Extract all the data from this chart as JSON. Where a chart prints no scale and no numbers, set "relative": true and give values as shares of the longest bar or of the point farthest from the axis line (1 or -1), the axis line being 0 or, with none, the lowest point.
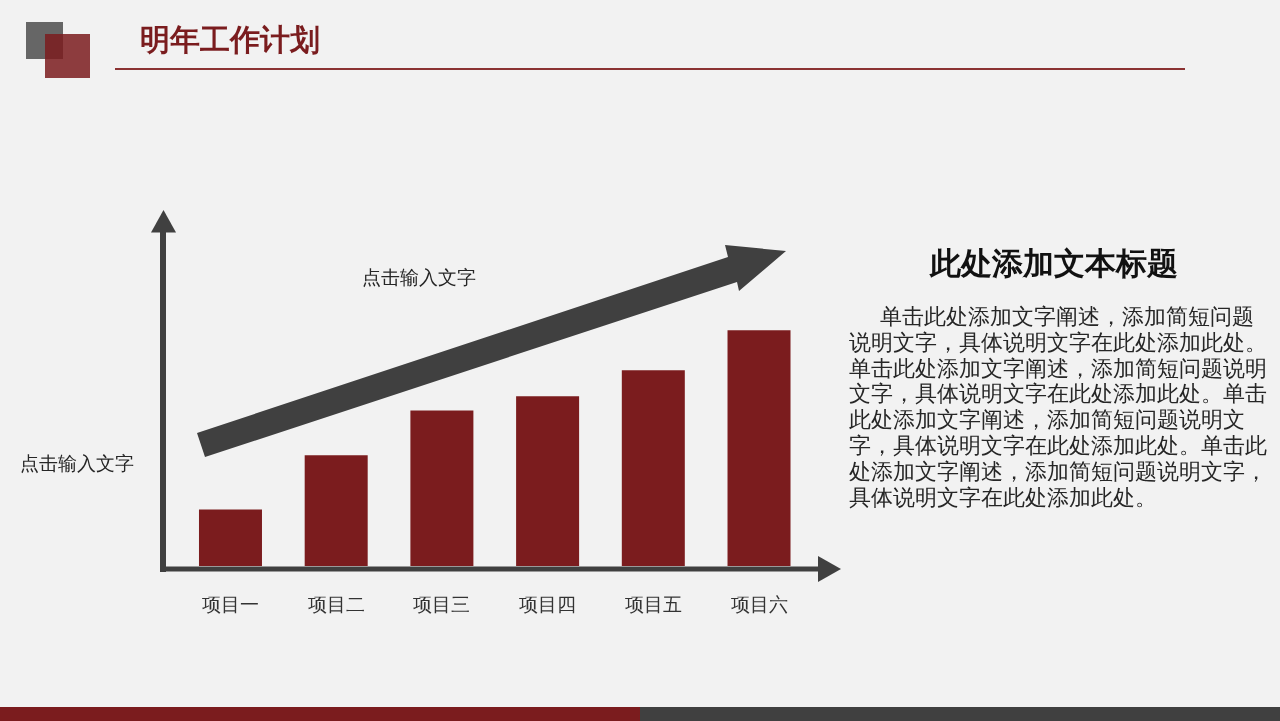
{
  "chart_data": [
    {
      "type": "bar",
      "title": "明年工作计划",
      "ylabel": "点击输入文字",
      "annotations": [
        "点击输入文字"
      ],
      "categories": [
        "项目一",
        "项目二",
        "项目三",
        "项目四",
        "项目五",
        "项目六"
      ],
      "values": [
        0.24,
        0.47,
        0.66,
        0.72,
        0.83,
        1
      ],
      "color": "#7b1c1e",
      "relative": true
    },
    {
      "type": "other",
      "title": "此处添加文本标题",
      "annotations": [
        "单击此处添加文字阐述，添加简短问题说明文字，具体说明文字在此处添加此处。单击此处添加文字阐述，添加简短问题说明文字，具体说明文字在此处添加此处。单击此处添加文字阐述，添加简短问题说明文字，具体说明文字在此处添加此处。单击此处添加文字阐述，添加简短问题说明文字，具体说明文字在此处添加此处。"
      ]
    }
  ]
}
